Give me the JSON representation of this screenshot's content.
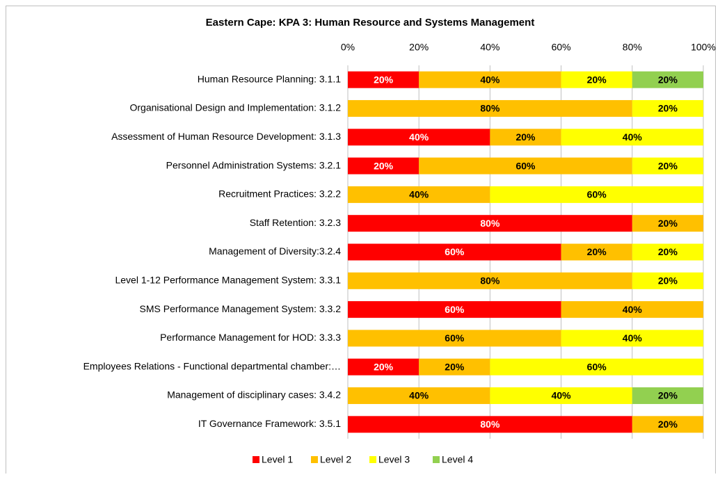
{
  "chart_data": {
    "type": "stacked_bar_horizontal",
    "title": "Eastern Cape: KPA 3: Human Resource and Systems Management",
    "categories": [
      "Human Resource Planning: 3.1.1",
      "Organisational Design and Implementation: 3.1.2",
      "Assessment of Human Resource Development: 3.1.3",
      "Personnel Administration Systems: 3.2.1",
      "Recruitment Practices: 3.2.2",
      "Staff Retention: 3.2.3",
      "Management of Diversity:3.2.4",
      "Level 1-12 Performance Management System: 3.3.1",
      "SMS Performance Management System: 3.3.2",
      "Performance Management for HOD: 3.3.3",
      "Employees Relations - Functional departmental chamber:…",
      "Management of disciplinary cases: 3.4.2",
      "IT Governance Framework: 3.5.1"
    ],
    "series": [
      {
        "name": "Level 1",
        "color": "#ff0000",
        "label_color": "#ffffff",
        "values": [
          20,
          null,
          40,
          20,
          null,
          80,
          60,
          null,
          60,
          null,
          20,
          null,
          80
        ],
        "value_labels": [
          "20%",
          null,
          "40%",
          "20%",
          null,
          "80%",
          "60%",
          null,
          "60%",
          null,
          "20%",
          null,
          "80%"
        ]
      },
      {
        "name": "Level 2",
        "color": "#ffc000",
        "label_color": "#000000",
        "values": [
          40,
          80,
          20,
          60,
          40,
          20,
          20,
          80,
          40,
          60,
          20,
          40,
          20
        ],
        "value_labels": [
          "40%",
          "80%",
          "20%",
          "60%",
          "40%",
          "20%",
          "20%",
          "80%",
          "40%",
          "60%",
          "20%",
          "40%",
          "20%"
        ]
      },
      {
        "name": "Level 3",
        "color": "#ffff00",
        "label_color": "#000000",
        "values": [
          20,
          20,
          40,
          20,
          60,
          null,
          20,
          20,
          null,
          40,
          60,
          40,
          null
        ],
        "value_labels": [
          "20%",
          "20%",
          "40%",
          "20%",
          "60%",
          null,
          "20%",
          "20%",
          null,
          "40%",
          "60%",
          "40%",
          null
        ]
      },
      {
        "name": "Level 4",
        "color": "#92d050",
        "label_color": "#000000",
        "values": [
          20,
          null,
          null,
          null,
          null,
          null,
          null,
          null,
          null,
          null,
          null,
          20,
          null
        ],
        "value_labels": [
          "20%",
          null,
          null,
          null,
          null,
          null,
          null,
          null,
          null,
          null,
          null,
          "20%",
          null
        ]
      }
    ],
    "xlim": [
      0,
      100
    ],
    "xticks": [
      {
        "value": 0,
        "label": "0%"
      },
      {
        "value": 20,
        "label": "20%"
      },
      {
        "value": 40,
        "label": "40%"
      },
      {
        "value": 60,
        "label": "60%"
      },
      {
        "value": 80,
        "label": "80%"
      },
      {
        "value": 100,
        "label": "100%"
      }
    ],
    "grid": true,
    "legend": "bottom"
  }
}
